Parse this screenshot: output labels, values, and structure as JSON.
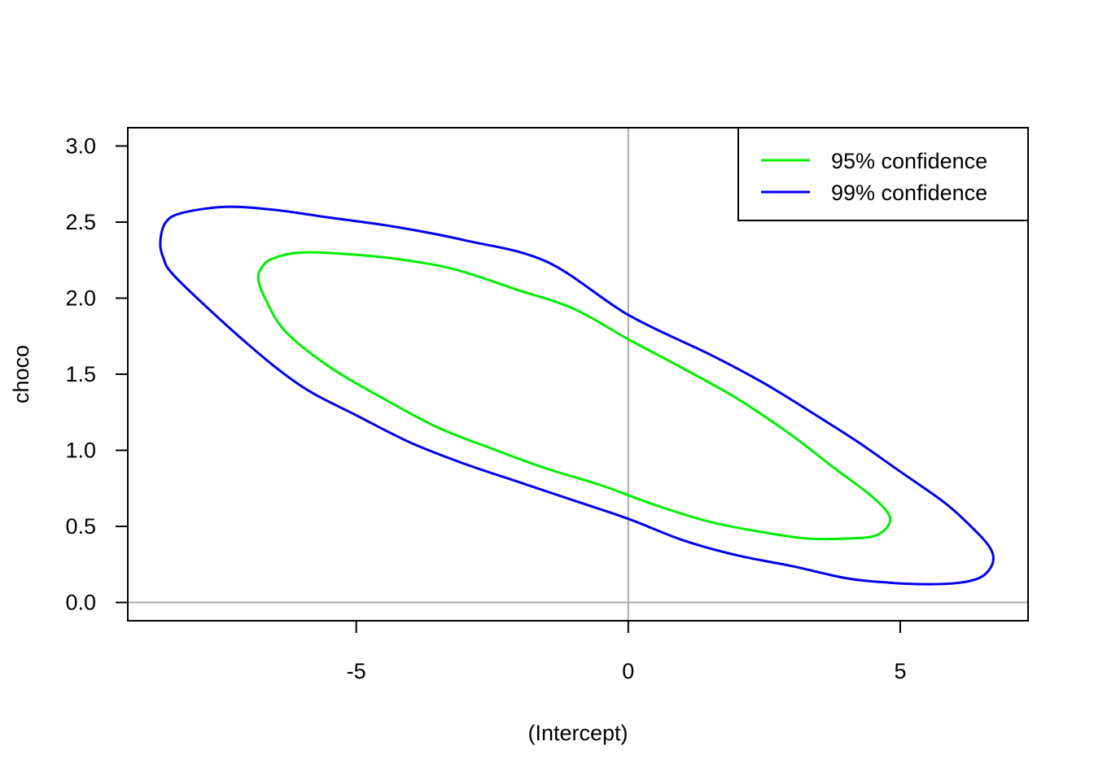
{
  "chart_data": {
    "type": "line",
    "xlabel": "(Intercept)",
    "ylabel": "choco",
    "xlim": [
      -9.2,
      7.35
    ],
    "ylim": [
      -0.12,
      3.12
    ],
    "x_ticks": [
      {
        "value": -5,
        "label": "-5"
      },
      {
        "value": 0,
        "label": "0"
      },
      {
        "value": 5,
        "label": "5"
      }
    ],
    "y_ticks": [
      {
        "value": 0.0,
        "label": "0.0"
      },
      {
        "value": 0.5,
        "label": "0.5"
      },
      {
        "value": 1.0,
        "label": "1.0"
      },
      {
        "value": 1.5,
        "label": "1.5"
      },
      {
        "value": 2.0,
        "label": "2.0"
      },
      {
        "value": 2.5,
        "label": "2.5"
      },
      {
        "value": 3.0,
        "label": "3.0"
      }
    ],
    "reference_lines": {
      "x": 0,
      "y": 0,
      "color": "#aaaaaa"
    },
    "legend_position": "top-right",
    "series": [
      {
        "name": "95% confidence",
        "color": "#00ee00",
        "points": [
          [
            -6.8,
            2.12
          ],
          [
            -6.74,
            2.2
          ],
          [
            -6.54,
            2.26
          ],
          [
            -6.02,
            2.3
          ],
          [
            -5.2,
            2.29
          ],
          [
            -4.3,
            2.26
          ],
          [
            -3.2,
            2.19
          ],
          [
            -2.0,
            2.05
          ],
          [
            -1.0,
            1.93
          ],
          [
            0.0,
            1.73
          ],
          [
            1.0,
            1.54
          ],
          [
            2.0,
            1.34
          ],
          [
            3.0,
            1.1
          ],
          [
            3.8,
            0.88
          ],
          [
            4.4,
            0.72
          ],
          [
            4.75,
            0.6
          ],
          [
            4.8,
            0.52
          ],
          [
            4.55,
            0.44
          ],
          [
            4.0,
            0.42
          ],
          [
            3.3,
            0.42
          ],
          [
            2.5,
            0.46
          ],
          [
            1.5,
            0.53
          ],
          [
            0.5,
            0.64
          ],
          [
            -0.5,
            0.77
          ],
          [
            -1.5,
            0.88
          ],
          [
            -2.5,
            1.01
          ],
          [
            -3.5,
            1.15
          ],
          [
            -4.5,
            1.34
          ],
          [
            -5.5,
            1.55
          ],
          [
            -6.3,
            1.78
          ],
          [
            -6.65,
            1.98
          ],
          [
            -6.8,
            2.12
          ]
        ]
      },
      {
        "name": "99% confidence",
        "color": "#0000ee",
        "points": [
          [
            -8.6,
            2.38
          ],
          [
            -8.5,
            2.5
          ],
          [
            -8.2,
            2.56
          ],
          [
            -7.4,
            2.6
          ],
          [
            -6.5,
            2.58
          ],
          [
            -5.5,
            2.53
          ],
          [
            -4.3,
            2.47
          ],
          [
            -3.0,
            2.38
          ],
          [
            -1.5,
            2.24
          ],
          [
            0.0,
            1.89
          ],
          [
            1.5,
            1.63
          ],
          [
            2.5,
            1.44
          ],
          [
            3.5,
            1.22
          ],
          [
            4.2,
            1.06
          ],
          [
            5.0,
            0.86
          ],
          [
            5.8,
            0.66
          ],
          [
            6.3,
            0.5
          ],
          [
            6.65,
            0.36
          ],
          [
            6.7,
            0.26
          ],
          [
            6.5,
            0.17
          ],
          [
            6.1,
            0.13
          ],
          [
            5.5,
            0.12
          ],
          [
            4.8,
            0.13
          ],
          [
            4.0,
            0.16
          ],
          [
            3.0,
            0.24
          ],
          [
            2.0,
            0.31
          ],
          [
            1.0,
            0.41
          ],
          [
            0.0,
            0.55
          ],
          [
            -1.0,
            0.67
          ],
          [
            -2.0,
            0.79
          ],
          [
            -3.0,
            0.91
          ],
          [
            -4.0,
            1.05
          ],
          [
            -5.0,
            1.23
          ],
          [
            -6.0,
            1.42
          ],
          [
            -7.0,
            1.7
          ],
          [
            -8.3,
            2.13
          ],
          [
            -8.55,
            2.27
          ],
          [
            -8.6,
            2.38
          ]
        ]
      }
    ]
  }
}
